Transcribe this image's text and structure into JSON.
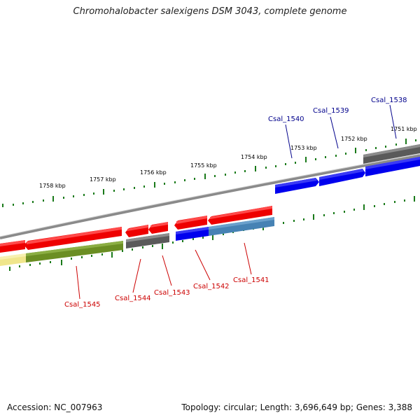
{
  "title": "Chromohalobacter salexigens DSM 3043, complete genome",
  "footer": {
    "accession": "Accession: NC_007963",
    "summary": "Topology: circular; Length: 3,696,649 bp; Genes: 3,388"
  },
  "colors": {
    "forward_cds": "#0000ee",
    "reverse_cds": "#ee0000",
    "other_feature": "#555555",
    "steelblue_feature": "#4682b4",
    "olive_feature": "#6b8e23",
    "khaki_feature": "#f0e68c",
    "tick": "#006400",
    "label_forward": "#00008b",
    "label_reverse": "#cc0000"
  },
  "scale_labels": {
    "kbp_1751": "1751 kbp",
    "kbp_1752": "1752 kbp",
    "kbp_1753": "1753 kbp",
    "kbp_1754": "1754 kbp",
    "kbp_1755": "1755 kbp",
    "kbp_1756": "1756 kbp",
    "kbp_1757": "1757 kbp",
    "kbp_1758": "1758 kbp"
  },
  "gene_labels": {
    "csal_1538": "Csal_1538",
    "csal_1539": "Csal_1539",
    "csal_1540": "Csal_1540",
    "csal_1541": "Csal_1541",
    "csal_1542": "Csal_1542",
    "csal_1543": "Csal_1543",
    "csal_1544": "Csal_1544",
    "csal_1545": "Csal_1545"
  }
}
